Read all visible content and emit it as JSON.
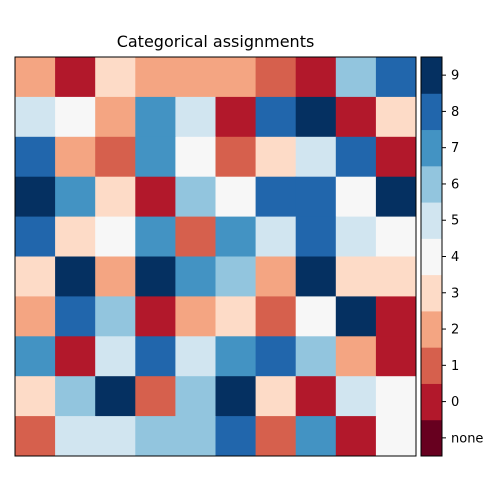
{
  "chart_data": {
    "type": "heatmap",
    "title": "Categorical assignments",
    "rows": 10,
    "cols": 10,
    "matrix": [
      [
        2,
        0,
        3,
        2,
        2,
        2,
        1,
        0,
        6,
        8
      ],
      [
        5,
        4,
        2,
        7,
        5,
        0,
        8,
        9,
        0,
        3
      ],
      [
        8,
        2,
        1,
        7,
        4,
        1,
        3,
        5,
        8,
        0
      ],
      [
        9,
        7,
        3,
        0,
        6,
        4,
        8,
        8,
        4,
        9
      ],
      [
        8,
        3,
        4,
        7,
        1,
        7,
        5,
        8,
        5,
        4
      ],
      [
        3,
        9,
        2,
        9,
        7,
        6,
        2,
        9,
        3,
        3
      ],
      [
        2,
        8,
        6,
        0,
        2,
        3,
        1,
        4,
        9,
        0
      ],
      [
        7,
        0,
        5,
        8,
        5,
        7,
        8,
        6,
        2,
        0
      ],
      [
        3,
        6,
        9,
        1,
        6,
        9,
        3,
        0,
        5,
        4
      ],
      [
        1,
        5,
        5,
        6,
        6,
        8,
        1,
        7,
        0,
        4
      ]
    ],
    "colorbar": {
      "categories": [
        "none",
        "0",
        "1",
        "2",
        "3",
        "4",
        "5",
        "6",
        "7",
        "8",
        "9"
      ],
      "colors": [
        "#67001f",
        "#b2182b",
        "#d6604d",
        "#f4a582",
        "#fddbc7",
        "#f7f7f7",
        "#d1e5f0",
        "#92c5de",
        "#4393c3",
        "#2166ac",
        "#053061"
      ]
    },
    "xticks": [],
    "yticks": []
  }
}
